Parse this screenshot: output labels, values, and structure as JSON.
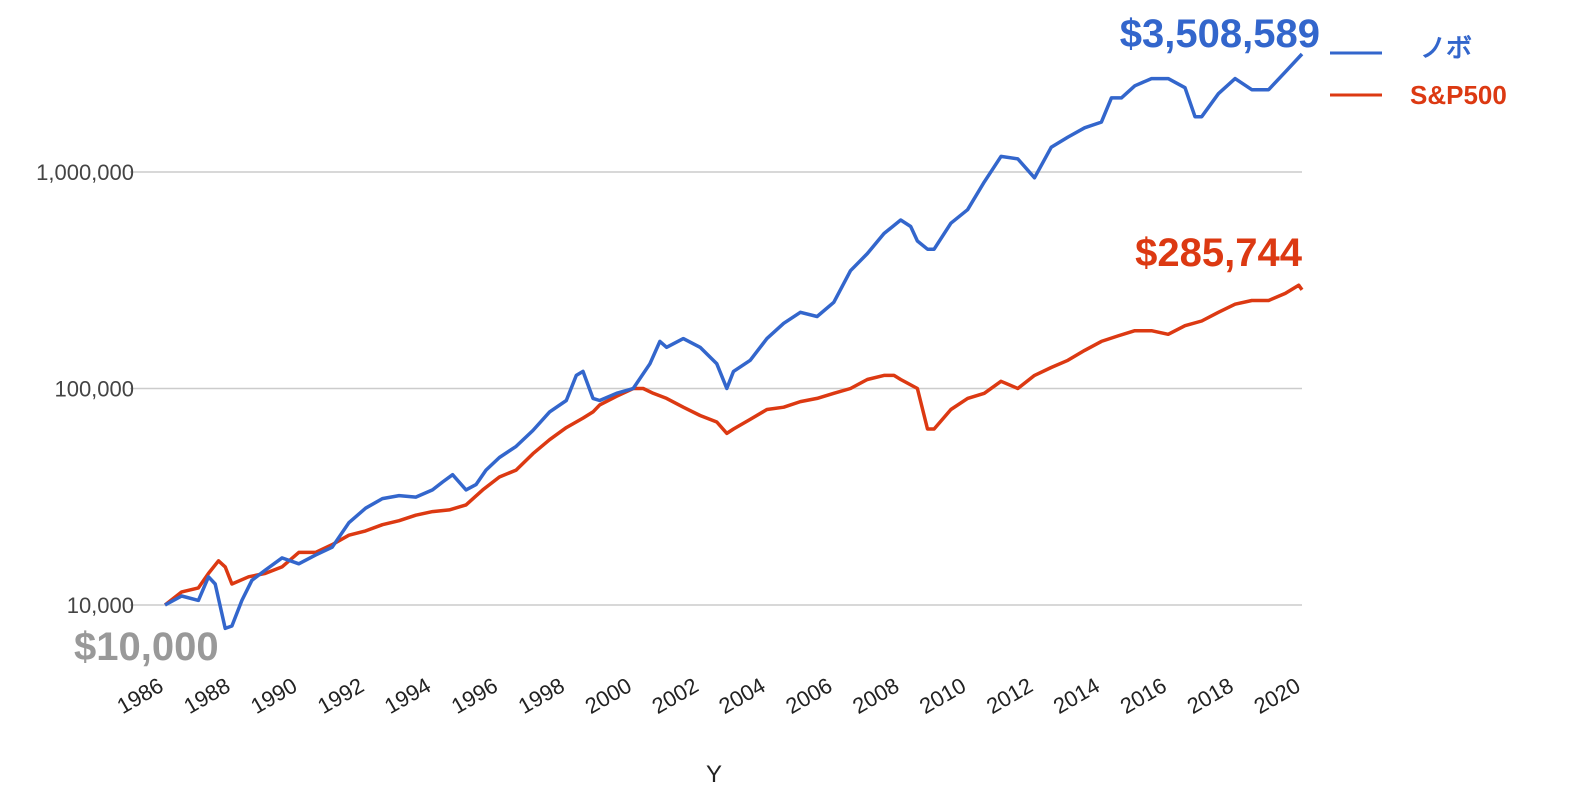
{
  "chart_data": {
    "type": "line",
    "scale": "log",
    "ylim": [
      5000,
      5000000
    ],
    "xlim": [
      1986,
      2020
    ],
    "y_ticks": [
      {
        "value": 10000,
        "label": "10,000"
      },
      {
        "value": 100000,
        "label": "100,000"
      },
      {
        "value": 1000000,
        "label": "1,000,000"
      }
    ],
    "x_ticks": [
      "1986",
      "1988",
      "1990",
      "1992",
      "1994",
      "1996",
      "1998",
      "2000",
      "2002",
      "2004",
      "2006",
      "2008",
      "2010",
      "2012",
      "2014",
      "2016",
      "2018",
      "2020"
    ],
    "xlabel": "Y",
    "grid": true,
    "legend": "top-right",
    "series": [
      {
        "name": "ノボ",
        "color": "#3366cc",
        "x": [
          1986.0,
          1986.5,
          1987.0,
          1987.3,
          1987.5,
          1987.8,
          1988.0,
          1988.3,
          1988.6,
          1989.0,
          1989.5,
          1990.0,
          1990.5,
          1991.0,
          1991.5,
          1992.0,
          1992.5,
          1993.0,
          1993.5,
          1994.0,
          1994.3,
          1994.6,
          1995.0,
          1995.3,
          1995.6,
          1996.0,
          1996.5,
          1997.0,
          1997.5,
          1998.0,
          1998.3,
          1998.5,
          1998.8,
          1999.0,
          1999.5,
          2000.0,
          2000.5,
          2000.8,
          2001.0,
          2001.5,
          2002.0,
          2002.5,
          2002.8,
          2003.0,
          2003.5,
          2004.0,
          2004.5,
          2005.0,
          2005.5,
          2006.0,
          2006.5,
          2007.0,
          2007.5,
          2008.0,
          2008.3,
          2008.5,
          2008.8,
          2009.0,
          2009.5,
          2010.0,
          2010.5,
          2011.0,
          2011.5,
          2012.0,
          2012.5,
          2013.0,
          2013.5,
          2014.0,
          2014.3,
          2014.6,
          2015.0,
          2015.5,
          2016.0,
          2016.5,
          2016.8,
          2017.0,
          2017.5,
          2018.0,
          2018.5,
          2019.0,
          2019.5,
          2020.0
        ],
        "values": [
          10000,
          11000,
          10500,
          13500,
          12500,
          7800,
          8000,
          10500,
          13000,
          14500,
          16500,
          15500,
          17000,
          18500,
          24000,
          28000,
          31000,
          32000,
          31500,
          34000,
          37000,
          40000,
          34000,
          36000,
          42000,
          48000,
          54000,
          64000,
          78000,
          88000,
          115000,
          120000,
          90000,
          88000,
          95000,
          100000,
          130000,
          165000,
          155000,
          170000,
          155000,
          130000,
          100000,
          120000,
          135000,
          170000,
          200000,
          225000,
          215000,
          250000,
          350000,
          420000,
          520000,
          600000,
          560000,
          480000,
          440000,
          440000,
          580000,
          670000,
          900000,
          1180000,
          1150000,
          940000,
          1300000,
          1450000,
          1600000,
          1700000,
          2200000,
          2200000,
          2500000,
          2700000,
          2700000,
          2450000,
          1800000,
          1800000,
          2300000,
          2700000,
          2400000,
          2400000,
          2900000,
          3508589
        ]
      },
      {
        "name": "S&P500",
        "color": "#dc3912",
        "x": [
          1986.0,
          1986.5,
          1987.0,
          1987.3,
          1987.6,
          1987.8,
          1988.0,
          1988.5,
          1989.0,
          1989.5,
          1990.0,
          1990.5,
          1991.0,
          1991.5,
          1992.0,
          1992.5,
          1993.0,
          1993.5,
          1994.0,
          1994.5,
          1995.0,
          1995.5,
          1996.0,
          1996.5,
          1997.0,
          1997.5,
          1998.0,
          1998.5,
          1998.8,
          1999.0,
          1999.5,
          2000.0,
          2000.3,
          2000.6,
          2001.0,
          2001.5,
          2002.0,
          2002.5,
          2002.8,
          2003.0,
          2003.5,
          2004.0,
          2004.5,
          2005.0,
          2005.5,
          2006.0,
          2006.5,
          2007.0,
          2007.5,
          2007.8,
          2008.0,
          2008.5,
          2008.8,
          2009.0,
          2009.5,
          2010.0,
          2010.5,
          2011.0,
          2011.5,
          2012.0,
          2012.5,
          2013.0,
          2013.5,
          2014.0,
          2014.5,
          2015.0,
          2015.5,
          2016.0,
          2016.5,
          2017.0,
          2017.5,
          2018.0,
          2018.5,
          2019.0,
          2019.5,
          2019.9,
          2020.0
        ],
        "values": [
          10000,
          11500,
          12000,
          14000,
          16000,
          15000,
          12500,
          13500,
          14000,
          15000,
          17500,
          17500,
          19000,
          21000,
          22000,
          23500,
          24500,
          26000,
          27000,
          27500,
          29000,
          34000,
          39000,
          42000,
          50000,
          58000,
          66000,
          73000,
          78000,
          84000,
          92000,
          100000,
          100000,
          95000,
          90000,
          82000,
          75000,
          70000,
          62000,
          65000,
          72000,
          80000,
          82000,
          87000,
          90000,
          95000,
          100000,
          110000,
          115000,
          115000,
          110000,
          100000,
          65000,
          65000,
          80000,
          90000,
          95000,
          108000,
          100000,
          115000,
          125000,
          135000,
          150000,
          165000,
          175000,
          185000,
          185000,
          178000,
          195000,
          205000,
          225000,
          245000,
          255000,
          255000,
          275000,
          300000,
          285744
        ]
      }
    ],
    "annotations": {
      "novo_end": {
        "text": "$3,508,589",
        "color": "#3366cc"
      },
      "sp_end": {
        "text": "$285,744",
        "color": "#dc3912"
      },
      "start": {
        "text": "$10,000",
        "color": "#999999"
      }
    }
  }
}
